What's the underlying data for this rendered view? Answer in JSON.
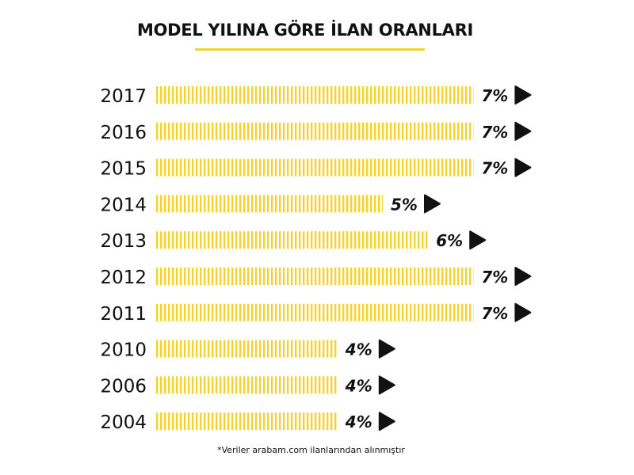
{
  "title": "MODEL YILINA GÖRE İLAN ORANLARI",
  "footnote": "*Veriler arabam.com ilanlarından alınmıştır",
  "colors": {
    "accent": "#F5D22E",
    "text": "#111111"
  },
  "chart_data": {
    "type": "bar",
    "orientation": "horizontal",
    "title": "MODEL YILINA GÖRE İLAN ORANLARI",
    "categories": [
      "2017",
      "2016",
      "2015",
      "2014",
      "2013",
      "2012",
      "2011",
      "2010",
      "2006",
      "2004"
    ],
    "values": [
      7,
      7,
      7,
      5,
      6,
      7,
      7,
      4,
      4,
      4
    ],
    "value_labels": [
      "7%",
      "7%",
      "7%",
      "5%",
      "6%",
      "7%",
      "7%",
      "4%",
      "4%",
      "4%"
    ],
    "unit": "%",
    "xlim": [
      0,
      7.5
    ],
    "grid": false,
    "legend": "none"
  }
}
